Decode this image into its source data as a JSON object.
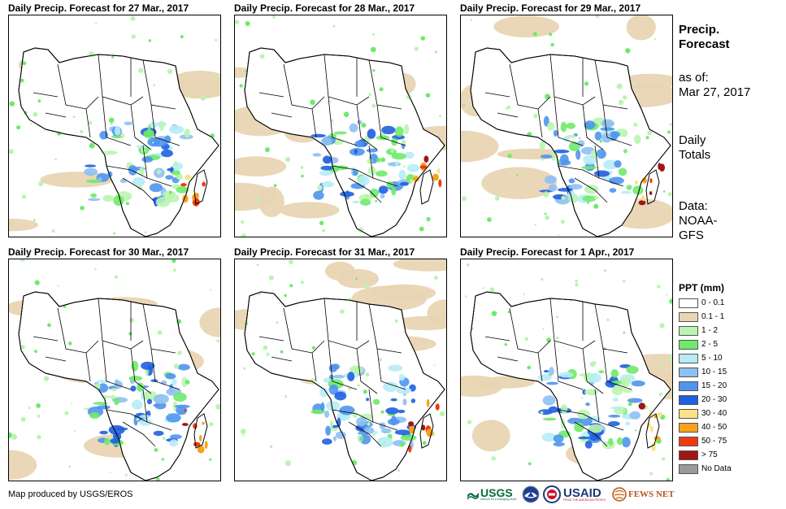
{
  "panels": [
    {
      "title": "Daily Precip. Forecast for 27 Mar., 2017"
    },
    {
      "title": "Daily Precip. Forecast for 28 Mar., 2017"
    },
    {
      "title": "Daily Precip. Forecast for 29 Mar., 2017"
    },
    {
      "title": "Daily Precip. Forecast for 30 Mar., 2017"
    },
    {
      "title": "Daily Precip. Forecast for 31 Mar., 2017"
    },
    {
      "title": "Daily Precip. Forecast for 1 Apr., 2017"
    }
  ],
  "sidebar": {
    "title_line1": "Precip.",
    "title_line2": "Forecast",
    "asof_label": "as of:",
    "asof_date": "Mar 27, 2017",
    "totals_line1": "Daily",
    "totals_line2": "Totals",
    "data_line1": "Data:",
    "data_line2": "NOAA-",
    "data_line3": "GFS"
  },
  "legend": {
    "title": "PPT (mm)",
    "items": [
      {
        "label": "0 - 0.1",
        "color": "#ffffff"
      },
      {
        "label": "0.1 - 1",
        "color": "#e8d5b3"
      },
      {
        "label": "1 - 2",
        "color": "#b9f5b0"
      },
      {
        "label": "2 - 5",
        "color": "#6fea6b"
      },
      {
        "label": "5 - 10",
        "color": "#b7ecf6"
      },
      {
        "label": "10 - 15",
        "color": "#8fc0f2"
      },
      {
        "label": "15 - 20",
        "color": "#4f95ee"
      },
      {
        "label": "20 - 30",
        "color": "#1f5fe0"
      },
      {
        "label": "30 - 40",
        "color": "#fbe286"
      },
      {
        "label": "40 - 50",
        "color": "#f7a21a"
      },
      {
        "label": "50 - 75",
        "color": "#ee3b0d"
      },
      {
        "label": "> 75",
        "color": "#a11515"
      },
      {
        "label": "No Data",
        "color": "#999999"
      }
    ]
  },
  "footer": {
    "credit": "Map produced by USGS/EROS",
    "logos": {
      "usgs": "USGS",
      "usgs_tagline": "science for a changing world",
      "usaid": "USAID",
      "usaid_tagline": "FROM THE AMERICAN PEOPLE",
      "fewsnet": "FEWS NET"
    }
  }
}
